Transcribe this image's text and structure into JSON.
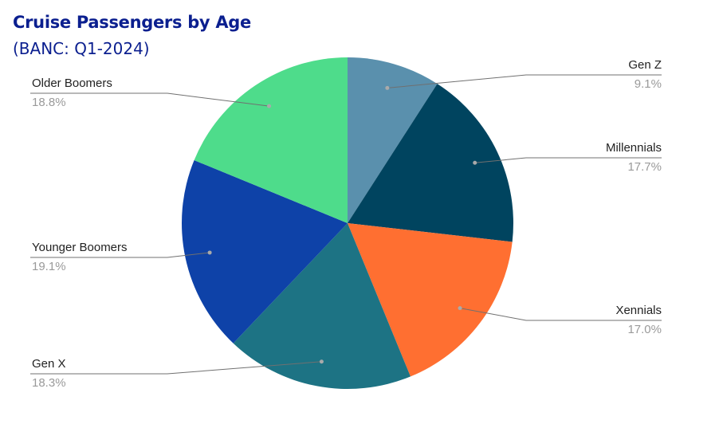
{
  "chart_data": {
    "type": "pie",
    "title": "Cruise Passengers by Age",
    "subtitle": "(BANC: Q1-2024)",
    "start_angle_deg": 0,
    "direction": "clockwise",
    "legend": "none",
    "slices": [
      {
        "label": "Gen Z",
        "value": 9.1,
        "display": "9.1%",
        "color": "#5a90ad",
        "side": "right"
      },
      {
        "label": "Millennials",
        "value": 17.7,
        "display": "17.7%",
        "color": "#00445f",
        "side": "right"
      },
      {
        "label": "Xennials",
        "value": 17.0,
        "display": "17.0%",
        "color": "#ff6f31",
        "side": "right"
      },
      {
        "label": "Gen X",
        "value": 18.3,
        "display": "18.3%",
        "color": "#1d7384",
        "side": "left"
      },
      {
        "label": "Younger Boomers",
        "value": 19.1,
        "display": "19.1%",
        "color": "#0e42a8",
        "side": "left"
      },
      {
        "label": "Older Boomers",
        "value": 18.8,
        "display": "18.8%",
        "color": "#4edc8b",
        "side": "left"
      }
    ]
  }
}
